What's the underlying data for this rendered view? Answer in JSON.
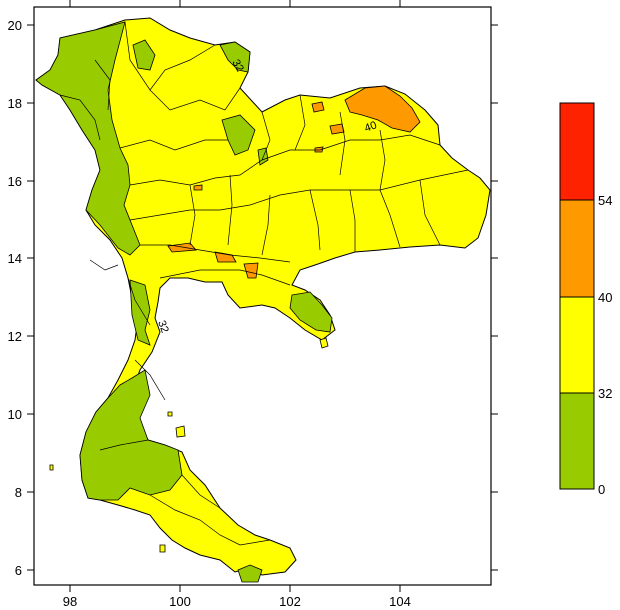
{
  "map": {
    "x_ticks": [
      "98",
      "100",
      "102",
      "104"
    ],
    "y_ticks": [
      "6",
      "8",
      "10",
      "12",
      "14",
      "16",
      "18",
      "20"
    ],
    "contour_labels": [
      "32",
      "32",
      "40"
    ]
  },
  "legend": {
    "bins": [
      {
        "label": "0",
        "color": "#99cc00"
      },
      {
        "label": "32",
        "color": "#ffff00"
      },
      {
        "label": "40",
        "color": "#ff9900"
      },
      {
        "label": "54",
        "color": "#ff2200"
      }
    ]
  },
  "colors": {
    "low": "#99cc00",
    "mid": "#ffff00",
    "high": "#ff9900",
    "top": "#ff2200"
  }
}
